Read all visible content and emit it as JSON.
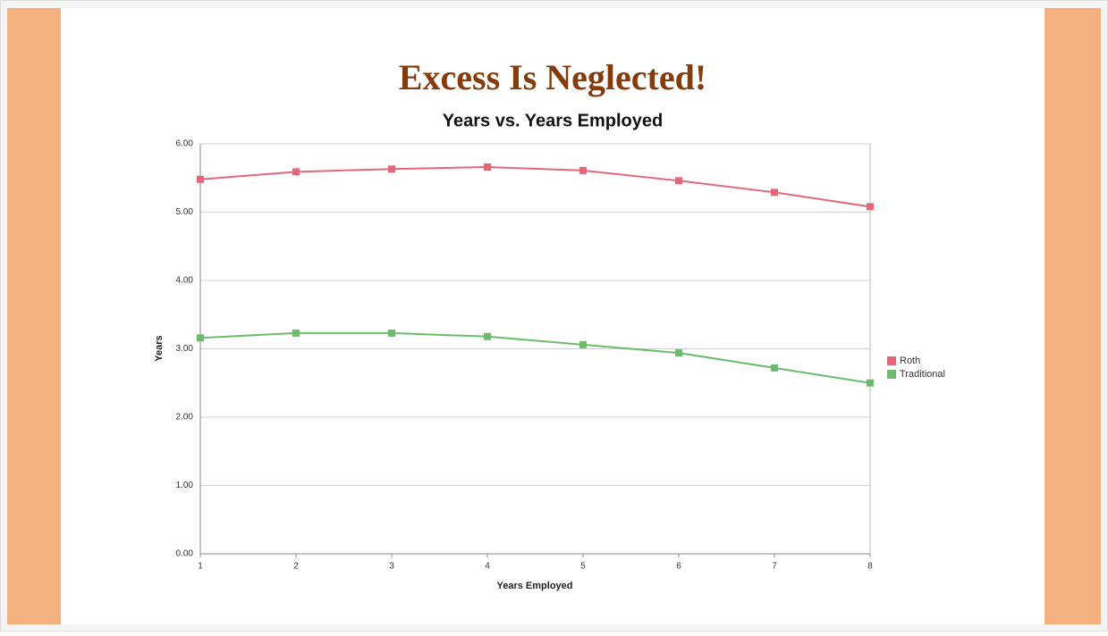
{
  "slide": {
    "title": "Excess Is Neglected!"
  },
  "chart_data": {
    "type": "line",
    "title": "Years vs. Years Employed",
    "x_label": "Years Employed",
    "y_label": "Years",
    "x": [
      1,
      2,
      3,
      4,
      5,
      6,
      7,
      8
    ],
    "series": [
      {
        "name": "Roth",
        "color": "#e36679",
        "values": [
          5.48,
          5.59,
          5.63,
          5.66,
          5.61,
          5.46,
          5.29,
          5.08
        ]
      },
      {
        "name": "Traditional",
        "color": "#6dbb6d",
        "values": [
          3.16,
          3.23,
          3.23,
          3.18,
          3.06,
          2.94,
          2.72,
          2.5
        ]
      }
    ],
    "xlim": [
      1,
      8
    ],
    "xticks": [
      1,
      2,
      3,
      4,
      5,
      6,
      7,
      8
    ],
    "ylim": [
      0,
      6
    ],
    "yticks": [
      {
        "value": 0,
        "label": "0.00"
      },
      {
        "value": 1,
        "label": "1.00"
      },
      {
        "value": 2,
        "label": "2.00"
      },
      {
        "value": 3,
        "label": "3.00"
      },
      {
        "value": 4,
        "label": "4.00"
      },
      {
        "value": 5,
        "label": "5.00"
      },
      {
        "value": 6,
        "label": "6.00"
      }
    ],
    "grid": true,
    "legend": "right"
  }
}
